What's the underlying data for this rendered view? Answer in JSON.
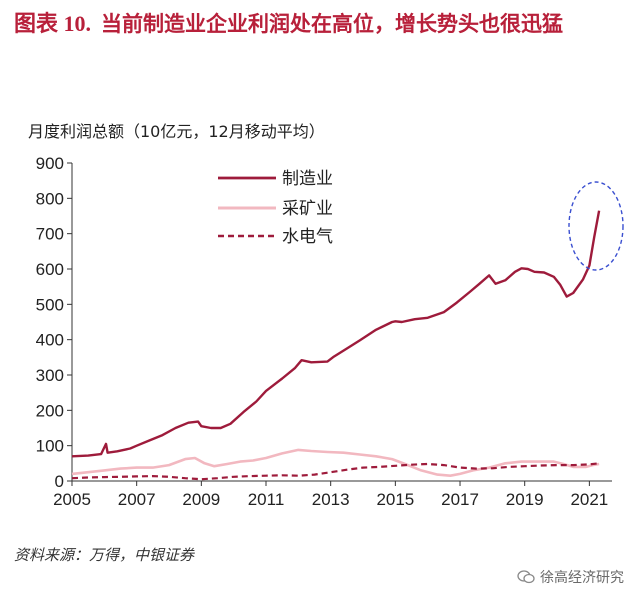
{
  "header": {
    "figure_no": "图表 10.",
    "title": "当前制造业企业利润处在高位，增长势头也很迅猛"
  },
  "footer": {
    "source": "资料来源：万得，中银证券",
    "watermark": "徐高经济研究",
    "watermark_icon": "wechat-icon"
  },
  "colors": {
    "title": "#b8203a",
    "manufacturing": "#9e1b3b",
    "mining": "#f2b8c0",
    "utilities": "#9e1b3b",
    "highlight_ellipse": "#3a4fd0"
  },
  "chart_data": {
    "type": "line",
    "ylabel": "月度利润总额（10亿元，12月移动平均）",
    "xlabel": "",
    "xlim": [
      2005,
      2021.7
    ],
    "ylim": [
      0,
      900
    ],
    "x_ticks": [
      2005,
      2007,
      2009,
      2011,
      2013,
      2015,
      2017,
      2019,
      2021
    ],
    "y_ticks": [
      0,
      100,
      200,
      300,
      400,
      500,
      600,
      700,
      800,
      900
    ],
    "grid": false,
    "legend": "top-left",
    "annotation": "dashed ellipse around the 2021 surge of 制造业",
    "series": [
      {
        "name": "制造业",
        "style": "solid",
        "points": [
          [
            2005.0,
            70
          ],
          [
            2005.5,
            72
          ],
          [
            2005.9,
            76
          ],
          [
            2006.05,
            105
          ],
          [
            2006.1,
            80
          ],
          [
            2006.4,
            84
          ],
          [
            2006.8,
            92
          ],
          [
            2007.0,
            100
          ],
          [
            2007.4,
            115
          ],
          [
            2007.8,
            130
          ],
          [
            2008.2,
            150
          ],
          [
            2008.6,
            165
          ],
          [
            2008.9,
            168
          ],
          [
            2009.0,
            155
          ],
          [
            2009.3,
            150
          ],
          [
            2009.6,
            150
          ],
          [
            2009.9,
            162
          ],
          [
            2010.3,
            195
          ],
          [
            2010.7,
            225
          ],
          [
            2011.0,
            255
          ],
          [
            2011.5,
            290
          ],
          [
            2011.9,
            320
          ],
          [
            2012.1,
            342
          ],
          [
            2012.4,
            336
          ],
          [
            2012.9,
            338
          ],
          [
            2013.1,
            352
          ],
          [
            2013.5,
            375
          ],
          [
            2013.9,
            398
          ],
          [
            2014.4,
            428
          ],
          [
            2014.9,
            450
          ],
          [
            2015.0,
            452
          ],
          [
            2015.2,
            450
          ],
          [
            2015.6,
            458
          ],
          [
            2016.0,
            462
          ],
          [
            2016.5,
            478
          ],
          [
            2016.9,
            505
          ],
          [
            2017.3,
            535
          ],
          [
            2017.6,
            558
          ],
          [
            2017.9,
            582
          ],
          [
            2018.1,
            558
          ],
          [
            2018.4,
            568
          ],
          [
            2018.7,
            592
          ],
          [
            2018.9,
            602
          ],
          [
            2019.1,
            600
          ],
          [
            2019.3,
            592
          ],
          [
            2019.6,
            590
          ],
          [
            2019.9,
            578
          ],
          [
            2020.1,
            555
          ],
          [
            2020.3,
            522
          ],
          [
            2020.5,
            532
          ],
          [
            2020.8,
            570
          ],
          [
            2021.0,
            610
          ],
          [
            2021.15,
            690
          ],
          [
            2021.3,
            765
          ]
        ]
      },
      {
        "name": "采矿业",
        "style": "solid",
        "points": [
          [
            2005.0,
            20
          ],
          [
            2005.5,
            25
          ],
          [
            2006.0,
            30
          ],
          [
            2006.5,
            35
          ],
          [
            2007.0,
            38
          ],
          [
            2007.5,
            38
          ],
          [
            2008.0,
            45
          ],
          [
            2008.5,
            62
          ],
          [
            2008.8,
            65
          ],
          [
            2009.1,
            50
          ],
          [
            2009.4,
            42
          ],
          [
            2009.8,
            48
          ],
          [
            2010.2,
            55
          ],
          [
            2010.6,
            58
          ],
          [
            2011.0,
            65
          ],
          [
            2011.5,
            78
          ],
          [
            2012.0,
            88
          ],
          [
            2012.4,
            85
          ],
          [
            2012.9,
            82
          ],
          [
            2013.4,
            80
          ],
          [
            2013.9,
            75
          ],
          [
            2014.4,
            70
          ],
          [
            2014.9,
            62
          ],
          [
            2015.3,
            48
          ],
          [
            2015.8,
            30
          ],
          [
            2016.3,
            18
          ],
          [
            2016.7,
            15
          ],
          [
            2017.0,
            20
          ],
          [
            2017.4,
            30
          ],
          [
            2017.9,
            38
          ],
          [
            2018.4,
            50
          ],
          [
            2018.9,
            55
          ],
          [
            2019.4,
            55
          ],
          [
            2019.9,
            55
          ],
          [
            2020.2,
            48
          ],
          [
            2020.5,
            40
          ],
          [
            2020.9,
            40
          ],
          [
            2021.1,
            45
          ],
          [
            2021.3,
            48
          ]
        ]
      },
      {
        "name": "水电气",
        "style": "dashed",
        "points": [
          [
            2005.0,
            8
          ],
          [
            2005.5,
            10
          ],
          [
            2006.0,
            11
          ],
          [
            2006.5,
            12
          ],
          [
            2007.0,
            13
          ],
          [
            2007.5,
            14
          ],
          [
            2008.0,
            12
          ],
          [
            2008.5,
            8
          ],
          [
            2009.0,
            5
          ],
          [
            2009.5,
            8
          ],
          [
            2010.0,
            12
          ],
          [
            2010.5,
            14
          ],
          [
            2011.0,
            15
          ],
          [
            2011.5,
            16
          ],
          [
            2012.0,
            15
          ],
          [
            2012.5,
            18
          ],
          [
            2013.0,
            25
          ],
          [
            2013.5,
            32
          ],
          [
            2014.0,
            38
          ],
          [
            2014.5,
            40
          ],
          [
            2015.0,
            43
          ],
          [
            2015.5,
            46
          ],
          [
            2016.0,
            48
          ],
          [
            2016.5,
            45
          ],
          [
            2017.0,
            38
          ],
          [
            2017.5,
            35
          ],
          [
            2018.0,
            36
          ],
          [
            2018.5,
            40
          ],
          [
            2019.0,
            42
          ],
          [
            2019.5,
            44
          ],
          [
            2020.0,
            45
          ],
          [
            2020.5,
            45
          ],
          [
            2021.0,
            47
          ],
          [
            2021.3,
            50
          ]
        ]
      }
    ]
  }
}
